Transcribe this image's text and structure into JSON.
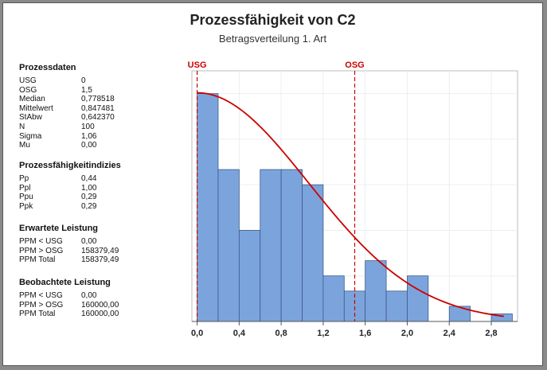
{
  "title": "Prozessfähigkeit von C2",
  "subtitle": "Betragsverteilung 1. Art",
  "colors": {
    "bars": "#7ca4dc",
    "bar_stroke": "#3a5a88",
    "curve": "#cc0000",
    "limits": "#cc0000",
    "frame": "#555555"
  },
  "sections": [
    {
      "heading": "Prozessdaten",
      "rows": [
        {
          "k": "USG",
          "v": "0"
        },
        {
          "k": "OSG",
          "v": "1,5"
        },
        {
          "k": "Median",
          "v": "0,778518"
        },
        {
          "k": "Mittelwert",
          "v": "0,847481"
        },
        {
          "k": "StAbw",
          "v": "0,642370"
        },
        {
          "k": "N",
          "v": "100"
        },
        {
          "k": "Sigma",
          "v": "1,06"
        },
        {
          "k": "Mu",
          "v": "0,00"
        }
      ]
    },
    {
      "heading": "Prozessfähigkeitindizies",
      "rows": [
        {
          "k": "Pp",
          "v": "0,44"
        },
        {
          "k": "Ppl",
          "v": "1,00"
        },
        {
          "k": "Ppu",
          "v": "0,29"
        },
        {
          "k": "Ppk",
          "v": "0,29"
        }
      ]
    },
    {
      "heading": "Erwartete Leistung",
      "rows": [
        {
          "k": "PPM < USG",
          "v": "0,00"
        },
        {
          "k": "PPM > OSG",
          "v": "158379,49"
        },
        {
          "k": "PPM Total",
          "v": "158379,49"
        }
      ]
    },
    {
      "heading": "Beobachtete Leistung",
      "rows": [
        {
          "k": "PPM < USG",
          "v": "0,00"
        },
        {
          "k": "PPM > OSG",
          "v": "160000,00"
        },
        {
          "k": "PPM Total",
          "v": "160000,00"
        }
      ]
    }
  ],
  "chart_data": {
    "type": "bar",
    "bin_width": 0.2,
    "bin_starts": [
      0.0,
      0.2,
      0.4,
      0.6,
      0.8,
      1.0,
      1.2,
      1.4,
      1.6,
      1.8,
      2.0,
      2.2,
      2.4,
      2.6,
      2.8
    ],
    "values": [
      15,
      10,
      6,
      10,
      10,
      9,
      3,
      2,
      4,
      2,
      3,
      0,
      1,
      0,
      0.5
    ],
    "xlim": [
      -0.05,
      3.05
    ],
    "ylim": [
      0,
      16.5
    ],
    "x_ticks": [
      "0,0",
      "0,4",
      "0,8",
      "1,2",
      "1,6",
      "2,0",
      "2,4",
      "2,8"
    ],
    "x_tick_values": [
      0,
      0.4,
      0.8,
      1.2,
      1.6,
      2.0,
      2.4,
      2.8
    ],
    "limits": [
      {
        "name": "USG",
        "value": 0.0
      },
      {
        "name": "OSG",
        "value": 1.5
      }
    ],
    "curve": {
      "type": "half-normal",
      "sigma": 1.06,
      "x_range": [
        0,
        2.92
      ]
    },
    "grid": true
  }
}
